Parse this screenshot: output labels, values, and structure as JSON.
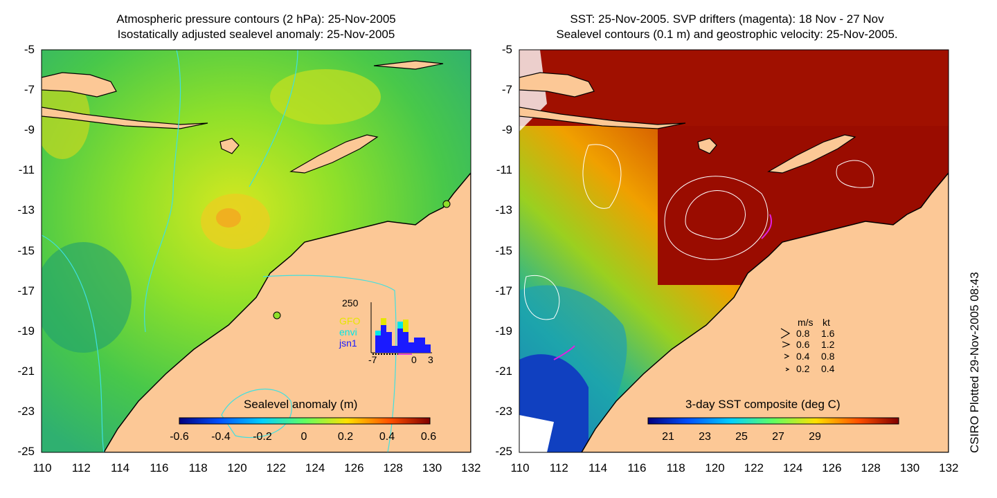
{
  "left_panel": {
    "title_line1": "Atmospheric pressure contours (2 hPa): 25-Nov-2005",
    "title_line2": "Isostatically adjusted sealevel anomaly: 25-Nov-2005",
    "colorbar_label": "Sealevel anomaly (m)",
    "colorbar_ticks": [
      "-0.6",
      "-0.4",
      "-0.2",
      "0",
      "0.2",
      "0.4",
      "0.6"
    ],
    "inset": {
      "ymax_label": "250",
      "x_ticks": [
        "-7",
        "0",
        "3"
      ],
      "legend": [
        {
          "label": "GFO",
          "color": "#e6e600"
        },
        {
          "label": "envi",
          "color": "#00e6e6"
        },
        {
          "label": "jsn1",
          "color": "#1a1aff"
        }
      ]
    }
  },
  "right_panel": {
    "title_line1": "SST: 25-Nov-2005. SVP drifters (magenta): 18 Nov - 27 Nov",
    "title_line2": "Sealevel contours (0.1 m) and geostrophic velocity: 25-Nov-2005.",
    "colorbar_label": "3-day SST composite (deg C)",
    "colorbar_ticks": [
      "21",
      "23",
      "25",
      "27",
      "29"
    ],
    "velocity_legend": {
      "header_ms": "m/s",
      "header_kt": "kt",
      "rows": [
        {
          "ms": "0.8",
          "kt": "1.6"
        },
        {
          "ms": "0.6",
          "kt": "1.2"
        },
        {
          "ms": "0.4",
          "kt": "0.8"
        },
        {
          "ms": "0.2",
          "kt": "0.4"
        }
      ]
    }
  },
  "axes": {
    "lat_ticks": [
      "-5",
      "-7",
      "-9",
      "-11",
      "-13",
      "-15",
      "-17",
      "-19",
      "-21",
      "-23",
      "-25"
    ],
    "lon_ticks": [
      "110",
      "112",
      "114",
      "116",
      "118",
      "120",
      "122",
      "124",
      "126",
      "128",
      "130",
      "132"
    ]
  },
  "credit": "CSIRO Plotted 29-Nov-2005 08:43",
  "colors": {
    "land": "#fcc896",
    "sla_ocean": "#5fd83a",
    "sst_warm": "#9a0c00",
    "contour_cyan": "#3fe0e0"
  }
}
